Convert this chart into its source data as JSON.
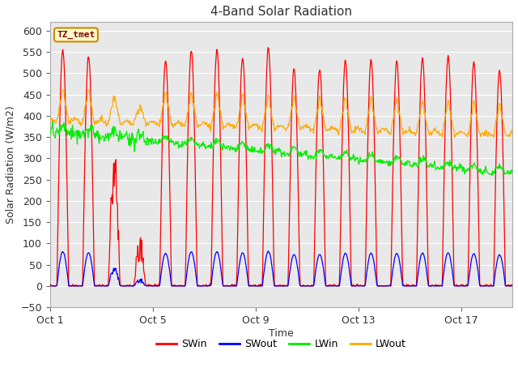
{
  "title": "4-Band Solar Radiation",
  "xlabel": "Time",
  "ylabel": "Solar Radiation (W/m2)",
  "ylim": [
    -50,
    620
  ],
  "yticks": [
    -50,
    0,
    50,
    100,
    150,
    200,
    250,
    300,
    350,
    400,
    450,
    500,
    550,
    600
  ],
  "legend_labels": [
    "SWin",
    "SWout",
    "LWin",
    "LWout"
  ],
  "legend_colors": [
    "#ff0000",
    "#0000ff",
    "#00ee00",
    "#ffaa00"
  ],
  "box_label": "TZ_tmet",
  "fig_bg_color": "#ffffff",
  "plot_bg_color": "#e8e8e8",
  "grid_color": "#ffffff",
  "x_tick_positions": [
    0,
    4,
    8,
    12,
    16
  ],
  "x_tick_labels": [
    "Oct 1",
    "Oct 5",
    "Oct 9",
    "Oct 13",
    "Oct 17"
  ],
  "xlim": [
    0,
    18
  ]
}
